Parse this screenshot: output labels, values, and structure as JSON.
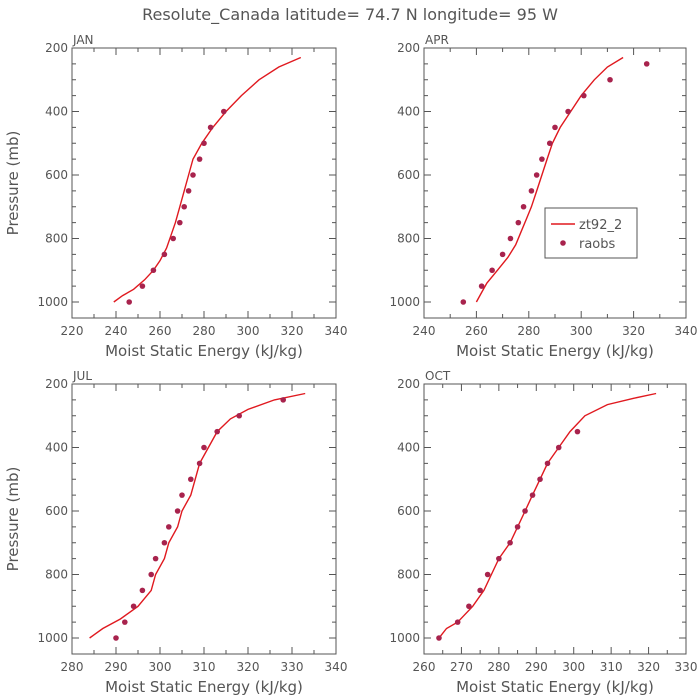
{
  "title": "Resolute_Canada  latitude= 74.7 N longitude= 95 W",
  "colors": {
    "model": "#e0191f",
    "obs": "#a8234d",
    "axis": "#555555"
  },
  "legend": {
    "model_label": "zt92_2",
    "obs_label": "raobs"
  },
  "chart_data": [
    {
      "type": "line",
      "panel_label": "JAN",
      "xlabel": "Moist Static Energy (kJ/kg)",
      "ylabel": "Pressure (mb)",
      "xlim": [
        220,
        340
      ],
      "ylim": [
        1000,
        200
      ],
      "x_ticks": [
        220,
        240,
        260,
        280,
        300,
        320,
        340
      ],
      "y_ticks": [
        200,
        400,
        600,
        800,
        1000
      ],
      "series": [
        {
          "name": "zt92_2",
          "kind": "line",
          "points": [
            [
              239,
              1000
            ],
            [
              243,
              980
            ],
            [
              248,
              960
            ],
            [
              253,
              930
            ],
            [
              257,
              900
            ],
            [
              260,
              870
            ],
            [
              263,
              830
            ],
            [
              265,
              790
            ],
            [
              267,
              750
            ],
            [
              269,
              700
            ],
            [
              271,
              650
            ],
            [
              273,
              600
            ],
            [
              275,
              550
            ],
            [
              279,
              500
            ],
            [
              284,
              450
            ],
            [
              290,
              400
            ],
            [
              297,
              350
            ],
            [
              305,
              300
            ],
            [
              314,
              260
            ],
            [
              324,
              230
            ]
          ]
        },
        {
          "name": "raobs",
          "kind": "scatter",
          "points": [
            [
              246,
              1000
            ],
            [
              252,
              950
            ],
            [
              257,
              900
            ],
            [
              262,
              850
            ],
            [
              266,
              800
            ],
            [
              269,
              750
            ],
            [
              271,
              700
            ],
            [
              273,
              650
            ],
            [
              275,
              600
            ],
            [
              278,
              550
            ],
            [
              280,
              500
            ],
            [
              283,
              450
            ],
            [
              289,
              400
            ]
          ]
        }
      ]
    },
    {
      "type": "line",
      "panel_label": "APR",
      "xlabel": "Moist Static Energy (kJ/kg)",
      "ylabel": "",
      "xlim": [
        240,
        340
      ],
      "ylim": [
        1000,
        200
      ],
      "x_ticks": [
        240,
        260,
        280,
        300,
        320,
        340
      ],
      "y_ticks": [
        200,
        400,
        600,
        800,
        1000
      ],
      "series": [
        {
          "name": "zt92_2",
          "kind": "line",
          "points": [
            [
              260,
              1000
            ],
            [
              262,
              970
            ],
            [
              264,
              940
            ],
            [
              268,
              900
            ],
            [
              272,
              860
            ],
            [
              275,
              820
            ],
            [
              277,
              780
            ],
            [
              279,
              740
            ],
            [
              281,
              700
            ],
            [
              283,
              650
            ],
            [
              285,
              600
            ],
            [
              287,
              550
            ],
            [
              289,
              500
            ],
            [
              292,
              450
            ],
            [
              296,
              400
            ],
            [
              300,
              350
            ],
            [
              305,
              300
            ],
            [
              310,
              260
            ],
            [
              316,
              230
            ]
          ]
        },
        {
          "name": "raobs",
          "kind": "scatter",
          "points": [
            [
              255,
              1000
            ],
            [
              262,
              950
            ],
            [
              266,
              900
            ],
            [
              270,
              850
            ],
            [
              273,
              800
            ],
            [
              276,
              750
            ],
            [
              278,
              700
            ],
            [
              281,
              650
            ],
            [
              283,
              600
            ],
            [
              285,
              550
            ],
            [
              288,
              500
            ],
            [
              290,
              450
            ],
            [
              295,
              400
            ],
            [
              301,
              350
            ],
            [
              311,
              300
            ],
            [
              325,
              250
            ]
          ]
        }
      ]
    },
    {
      "type": "line",
      "panel_label": "JUL",
      "xlabel": "Moist Static Energy (kJ/kg)",
      "ylabel": "Pressure (mb)",
      "xlim": [
        280,
        340
      ],
      "ylim": [
        1000,
        200
      ],
      "x_ticks": [
        280,
        290,
        300,
        310,
        320,
        330,
        340
      ],
      "y_ticks": [
        200,
        400,
        600,
        800,
        1000
      ],
      "series": [
        {
          "name": "zt92_2",
          "kind": "line",
          "points": [
            [
              284,
              1000
            ],
            [
              287,
              970
            ],
            [
              291,
              940
            ],
            [
              295,
              900
            ],
            [
              298,
              850
            ],
            [
              299,
              800
            ],
            [
              301,
              750
            ],
            [
              302,
              700
            ],
            [
              304,
              650
            ],
            [
              305,
              600
            ],
            [
              307,
              550
            ],
            [
              308,
              500
            ],
            [
              309,
              450
            ],
            [
              311,
              400
            ],
            [
              313,
              350
            ],
            [
              316,
              310
            ],
            [
              320,
              280
            ],
            [
              326,
              250
            ],
            [
              333,
              230
            ]
          ]
        },
        {
          "name": "raobs",
          "kind": "scatter",
          "points": [
            [
              290,
              1000
            ],
            [
              292,
              950
            ],
            [
              294,
              900
            ],
            [
              296,
              850
            ],
            [
              298,
              800
            ],
            [
              299,
              750
            ],
            [
              301,
              700
            ],
            [
              302,
              650
            ],
            [
              304,
              600
            ],
            [
              305,
              550
            ],
            [
              307,
              500
            ],
            [
              309,
              450
            ],
            [
              310,
              400
            ],
            [
              313,
              350
            ],
            [
              318,
              300
            ],
            [
              328,
              250
            ]
          ]
        }
      ]
    },
    {
      "type": "line",
      "panel_label": "OCT",
      "xlabel": "Moist Static Energy (kJ/kg)",
      "ylabel": "",
      "xlim": [
        260,
        330
      ],
      "ylim": [
        1000,
        200
      ],
      "x_ticks": [
        260,
        270,
        280,
        290,
        300,
        310,
        320,
        330
      ],
      "y_ticks": [
        200,
        400,
        600,
        800,
        1000
      ],
      "series": [
        {
          "name": "zt92_2",
          "kind": "line",
          "points": [
            [
              264,
              1000
            ],
            [
              266,
              970
            ],
            [
              269,
              950
            ],
            [
              273,
              900
            ],
            [
              276,
              850
            ],
            [
              278,
              800
            ],
            [
              280,
              750
            ],
            [
              283,
              700
            ],
            [
              285,
              650
            ],
            [
              287,
              600
            ],
            [
              289,
              550
            ],
            [
              291,
              500
            ],
            [
              293,
              450
            ],
            [
              296,
              400
            ],
            [
              299,
              350
            ],
            [
              303,
              300
            ],
            [
              309,
              265
            ],
            [
              316,
              245
            ],
            [
              322,
              230
            ]
          ]
        },
        {
          "name": "raobs",
          "kind": "scatter",
          "points": [
            [
              264,
              1000
            ],
            [
              269,
              950
            ],
            [
              272,
              900
            ],
            [
              275,
              850
            ],
            [
              277,
              800
            ],
            [
              280,
              750
            ],
            [
              283,
              700
            ],
            [
              285,
              650
            ],
            [
              287,
              600
            ],
            [
              289,
              550
            ],
            [
              291,
              500
            ],
            [
              293,
              450
            ],
            [
              296,
              400
            ],
            [
              301,
              350
            ]
          ]
        }
      ]
    }
  ]
}
